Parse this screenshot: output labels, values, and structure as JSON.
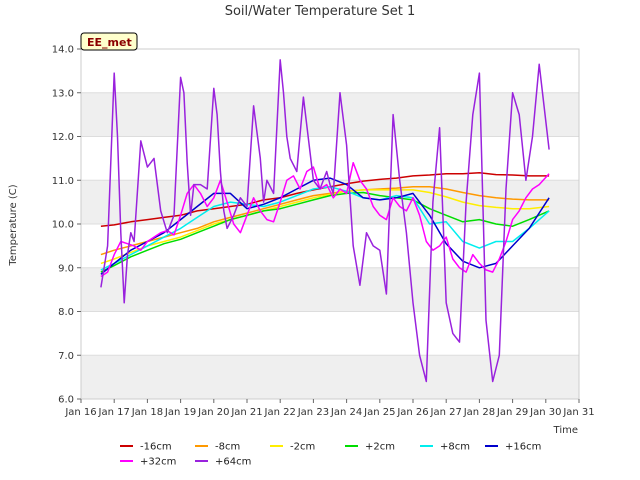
{
  "chart_data": {
    "type": "line",
    "title": "Soil/Water Temperature Set 1",
    "xlabel": "Time",
    "ylabel": "Temperature (C)",
    "badge": "EE_met",
    "ylim": [
      6.0,
      14.0
    ],
    "xlim": [
      16,
      31
    ],
    "yticks": [
      "6.0",
      "7.0",
      "8.0",
      "9.0",
      "10.0",
      "11.0",
      "12.0",
      "13.0",
      "14.0"
    ],
    "ytick_values": [
      6,
      7,
      8,
      9,
      10,
      11,
      12,
      13,
      14
    ],
    "xticks": [
      "Jan 16",
      "Jan 17",
      "Jan 18",
      "Jan 19",
      "Jan 20",
      "Jan 21",
      "Jan 22",
      "Jan 23",
      "Jan 24",
      "Jan 25",
      "Jan 26",
      "Jan 27",
      "Jan 28",
      "Jan 29",
      "Jan 30",
      "Jan 31"
    ],
    "xtick_values": [
      16,
      17,
      18,
      19,
      20,
      21,
      22,
      23,
      24,
      25,
      26,
      27,
      28,
      29,
      30,
      31
    ],
    "grid": "horizontal bands",
    "legend_placement": "bottom",
    "series": [
      {
        "name": "-16cm",
        "color": "#cc0000",
        "x": [
          16.6,
          17,
          17.5,
          18,
          18.5,
          19,
          19.5,
          20,
          20.5,
          21,
          21.5,
          22,
          22.5,
          23,
          23.5,
          24,
          24.5,
          25,
          25.5,
          26,
          26.5,
          27,
          27.5,
          28,
          28.5,
          29,
          29.5,
          30.1
        ],
        "y": [
          9.95,
          9.98,
          10.05,
          10.1,
          10.15,
          10.2,
          10.3,
          10.35,
          10.4,
          10.45,
          10.55,
          10.6,
          10.7,
          10.78,
          10.85,
          10.92,
          10.98,
          11.02,
          11.05,
          11.1,
          11.12,
          11.15,
          11.15,
          11.17,
          11.13,
          11.12,
          11.1,
          11.1
        ]
      },
      {
        "name": "-8cm",
        "color": "#ff9900",
        "x": [
          16.6,
          17,
          17.5,
          18,
          18.5,
          19,
          19.5,
          20,
          20.5,
          21,
          21.5,
          22,
          22.5,
          23,
          23.5,
          24,
          24.5,
          25,
          25.5,
          26,
          26.5,
          27,
          27.5,
          28,
          28.5,
          29,
          29.5,
          30.1
        ],
        "y": [
          9.3,
          9.4,
          9.5,
          9.6,
          9.7,
          9.8,
          9.9,
          10.05,
          10.15,
          10.25,
          10.35,
          10.45,
          10.55,
          10.65,
          10.7,
          10.75,
          10.78,
          10.8,
          10.82,
          10.85,
          10.85,
          10.8,
          10.72,
          10.65,
          10.6,
          10.57,
          10.55,
          10.55
        ]
      },
      {
        "name": "-2cm",
        "color": "#ffee00",
        "x": [
          16.6,
          17,
          17.5,
          18,
          18.5,
          19,
          19.5,
          20,
          20.5,
          21,
          21.5,
          22,
          22.5,
          23,
          23.5,
          24,
          24.5,
          25,
          25.5,
          26,
          26.5,
          27,
          27.5,
          28,
          28.5,
          29,
          29.5,
          30.1
        ],
        "y": [
          9.1,
          9.2,
          9.35,
          9.5,
          9.6,
          9.7,
          9.85,
          10.0,
          10.1,
          10.2,
          10.3,
          10.4,
          10.5,
          10.6,
          10.68,
          10.75,
          10.78,
          10.78,
          10.78,
          10.78,
          10.72,
          10.62,
          10.5,
          10.42,
          10.38,
          10.35,
          10.35,
          10.4
        ]
      },
      {
        "name": "+2cm",
        "color": "#00dd00",
        "x": [
          16.6,
          17,
          17.5,
          18,
          18.5,
          19,
          19.5,
          20,
          20.5,
          21,
          21.5,
          22,
          22.5,
          23,
          23.5,
          24,
          24.5,
          25,
          25.5,
          26,
          26.5,
          27,
          27.5,
          28,
          28.5,
          29,
          29.5,
          30.1
        ],
        "y": [
          8.9,
          9.05,
          9.25,
          9.4,
          9.55,
          9.65,
          9.8,
          9.95,
          10.1,
          10.2,
          10.3,
          10.35,
          10.45,
          10.55,
          10.65,
          10.7,
          10.72,
          10.65,
          10.6,
          10.55,
          10.35,
          10.2,
          10.05,
          10.1,
          10.0,
          9.95,
          10.1,
          10.3
        ]
      },
      {
        "name": "+8cm",
        "color": "#00eeee",
        "x": [
          16.6,
          17,
          17.5,
          18,
          18.5,
          19,
          19.5,
          20,
          20.5,
          21,
          21.5,
          22,
          22.5,
          23,
          23.5,
          24,
          24.5,
          25,
          25.5,
          26,
          26.5,
          27,
          27.5,
          28,
          28.5,
          29,
          29.5,
          30.1
        ],
        "y": [
          8.95,
          9.1,
          9.3,
          9.5,
          9.7,
          9.9,
          10.15,
          10.4,
          10.5,
          10.45,
          10.4,
          10.5,
          10.65,
          10.8,
          10.85,
          10.75,
          10.6,
          10.55,
          10.65,
          10.6,
          10.0,
          10.05,
          9.6,
          9.45,
          9.6,
          9.6,
          9.9,
          10.3
        ]
      },
      {
        "name": "+16cm",
        "color": "#0000cc",
        "x": [
          16.6,
          17,
          17.5,
          18,
          18.5,
          19,
          19.5,
          20,
          20.5,
          21,
          21.5,
          22,
          22.5,
          23,
          23.5,
          24,
          24.5,
          25,
          25.5,
          26,
          26.5,
          27,
          27.5,
          28,
          28.5,
          29,
          29.5,
          30.1
        ],
        "y": [
          8.85,
          9.1,
          9.4,
          9.6,
          9.8,
          10.1,
          10.4,
          10.7,
          10.7,
          10.35,
          10.45,
          10.6,
          10.8,
          11.0,
          11.05,
          10.9,
          10.6,
          10.55,
          10.6,
          10.7,
          10.2,
          9.55,
          9.15,
          9.0,
          9.1,
          9.5,
          9.9,
          10.6
        ]
      },
      {
        "name": "+32cm",
        "color": "#ff00ff",
        "x": [
          16.6,
          16.8,
          17,
          17.2,
          17.4,
          17.6,
          17.8,
          18,
          18.2,
          18.4,
          18.6,
          18.8,
          19,
          19.2,
          19.4,
          19.6,
          19.8,
          20,
          20.2,
          20.4,
          20.6,
          20.8,
          21,
          21.2,
          21.4,
          21.6,
          21.8,
          22,
          22.2,
          22.4,
          22.6,
          22.8,
          23,
          23.2,
          23.4,
          23.6,
          23.8,
          24,
          24.2,
          24.4,
          24.6,
          24.8,
          25,
          25.2,
          25.4,
          25.6,
          25.8,
          26,
          26.2,
          26.4,
          26.6,
          26.8,
          27,
          27.2,
          27.4,
          27.6,
          27.8,
          28,
          28.2,
          28.4,
          28.6,
          28.8,
          29,
          29.2,
          29.4,
          29.6,
          29.8,
          30.1
        ],
        "y": [
          8.8,
          8.9,
          9.3,
          9.6,
          9.55,
          9.5,
          9.4,
          9.6,
          9.7,
          9.8,
          9.85,
          9.75,
          10.2,
          10.7,
          10.9,
          10.7,
          10.4,
          10.6,
          11.0,
          10.5,
          10.0,
          9.8,
          10.2,
          10.6,
          10.3,
          10.1,
          10.05,
          10.5,
          11.0,
          11.1,
          10.8,
          11.2,
          11.3,
          10.8,
          10.9,
          10.6,
          10.8,
          10.7,
          11.4,
          11.0,
          10.8,
          10.4,
          10.2,
          10.1,
          10.6,
          10.4,
          10.3,
          10.6,
          10.2,
          9.6,
          9.4,
          9.5,
          9.7,
          9.2,
          9.0,
          8.9,
          9.3,
          9.1,
          8.95,
          8.9,
          9.2,
          9.6,
          10.1,
          10.3,
          10.6,
          10.8,
          10.9,
          11.15
        ]
      },
      {
        "name": "+64cm",
        "color": "#9922dd",
        "x": [
          16.6,
          16.8,
          17,
          17.1,
          17.2,
          17.3,
          17.4,
          17.5,
          17.6,
          17.8,
          18,
          18.2,
          18.4,
          18.6,
          18.8,
          19,
          19.1,
          19.2,
          19.3,
          19.4,
          19.6,
          19.8,
          20,
          20.1,
          20.2,
          20.3,
          20.4,
          20.6,
          20.8,
          21,
          21.2,
          21.4,
          21.5,
          21.6,
          21.8,
          22,
          22.1,
          22.2,
          22.3,
          22.5,
          22.7,
          23,
          23.2,
          23.4,
          23.5,
          23.6,
          23.8,
          24,
          24.2,
          24.4,
          24.6,
          24.8,
          25,
          25.2,
          25.4,
          25.6,
          25.8,
          26,
          26.2,
          26.4,
          26.6,
          26.8,
          27,
          27.2,
          27.4,
          27.6,
          27.8,
          28,
          28.2,
          28.4,
          28.6,
          28.8,
          29,
          29.2,
          29.4,
          29.6,
          29.8,
          30.1
        ],
        "y": [
          8.55,
          9.5,
          13.45,
          12.0,
          9.8,
          8.2,
          9.3,
          9.8,
          9.6,
          11.9,
          11.3,
          11.5,
          10.3,
          9.8,
          10.2,
          13.35,
          13.0,
          11.4,
          10.2,
          10.9,
          10.9,
          10.8,
          13.1,
          12.5,
          11.2,
          10.3,
          9.9,
          10.2,
          10.6,
          10.4,
          12.7,
          11.5,
          10.5,
          11.0,
          10.7,
          13.75,
          13.0,
          12.0,
          11.5,
          11.2,
          12.9,
          11.0,
          10.8,
          11.2,
          10.9,
          10.7,
          13.0,
          11.8,
          9.5,
          8.6,
          9.8,
          9.5,
          9.4,
          8.4,
          12.5,
          11.0,
          9.8,
          8.2,
          7.0,
          6.4,
          10.5,
          12.2,
          8.2,
          7.5,
          7.3,
          10.5,
          12.5,
          13.45,
          7.8,
          6.4,
          7.0,
          10.8,
          13.0,
          12.5,
          11.0,
          12.0,
          13.65,
          11.7
        ]
      }
    ]
  }
}
